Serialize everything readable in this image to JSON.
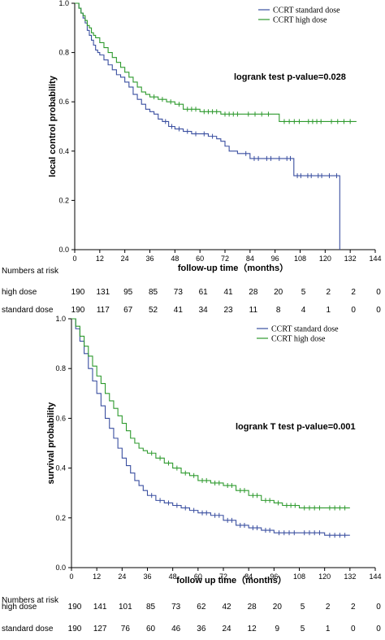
{
  "chart_data": [
    {
      "type": "line",
      "subtype": "kaplan-meier",
      "xlabel": "follow-up time（months）",
      "ylabel": "local control probability",
      "xlim": [
        0,
        144
      ],
      "ylim": [
        0,
        1
      ],
      "x_ticks": [
        "0",
        "12",
        "24",
        "36",
        "48",
        "60",
        "72",
        "84",
        "96",
        "108",
        "120",
        "132",
        "144"
      ],
      "y_ticks": [
        "0.0",
        "0.2",
        "0.4",
        "0.6",
        "0.8",
        "1.0"
      ],
      "annotation": "logrank test p-value=0.028",
      "legend_position": "top-right",
      "legend": [
        "CCRT standard dose",
        "CCRT high dose"
      ],
      "series": [
        {
          "name": "CCRT standard dose",
          "color": "#3a4fa0",
          "x": [
            0,
            2,
            3,
            4,
            5,
            6,
            7,
            8,
            9,
            10,
            11,
            12,
            14,
            16,
            18,
            20,
            22,
            24,
            26,
            28,
            30,
            32,
            34,
            36,
            38,
            40,
            42,
            45,
            48,
            52,
            56,
            60,
            64,
            68,
            70,
            72,
            74,
            76,
            78,
            80,
            84,
            90,
            96,
            100,
            105,
            110,
            115,
            120,
            124,
            127
          ],
          "y": [
            1.0,
            0.98,
            0.96,
            0.94,
            0.92,
            0.89,
            0.87,
            0.85,
            0.83,
            0.81,
            0.8,
            0.79,
            0.77,
            0.75,
            0.73,
            0.71,
            0.7,
            0.68,
            0.66,
            0.63,
            0.61,
            0.59,
            0.57,
            0.56,
            0.55,
            0.53,
            0.52,
            0.5,
            0.49,
            0.48,
            0.47,
            0.47,
            0.46,
            0.45,
            0.44,
            0.42,
            0.4,
            0.4,
            0.39,
            0.39,
            0.37,
            0.37,
            0.37,
            0.37,
            0.3,
            0.3,
            0.3,
            0.3,
            0.3,
            0.0
          ]
        },
        {
          "name": "CCRT high dose",
          "color": "#2e9a2e",
          "x": [
            0,
            2,
            3,
            4,
            5,
            6,
            7,
            8,
            9,
            10,
            12,
            14,
            16,
            18,
            20,
            22,
            24,
            26,
            28,
            30,
            32,
            34,
            36,
            40,
            44,
            48,
            52,
            60,
            70,
            80,
            96,
            98,
            110,
            120,
            135
          ],
          "y": [
            1.0,
            0.98,
            0.96,
            0.95,
            0.93,
            0.91,
            0.9,
            0.88,
            0.87,
            0.86,
            0.84,
            0.82,
            0.8,
            0.78,
            0.76,
            0.74,
            0.72,
            0.7,
            0.68,
            0.66,
            0.64,
            0.63,
            0.62,
            0.61,
            0.6,
            0.59,
            0.57,
            0.56,
            0.55,
            0.55,
            0.55,
            0.52,
            0.52,
            0.52,
            0.52
          ]
        }
      ],
      "numbers_at_risk": {
        "label": "Numbers at risk",
        "rows": [
          {
            "label": "high dose",
            "values": [
              "190",
              "131",
              "95",
              "85",
              "73",
              "61",
              "41",
              "28",
              "20",
              "5",
              "2",
              "2",
              "0"
            ]
          },
          {
            "label": "standard dose",
            "values": [
              "190",
              "117",
              "67",
              "52",
              "41",
              "34",
              "23",
              "11",
              "8",
              "4",
              "1",
              "0",
              "0"
            ]
          }
        ]
      }
    },
    {
      "type": "line",
      "subtype": "kaplan-meier",
      "xlabel": "follow up time（months）",
      "ylabel": "survival probability",
      "xlim": [
        0,
        144
      ],
      "ylim": [
        0,
        1
      ],
      "x_ticks": [
        "0",
        "12",
        "24",
        "36",
        "48",
        "60",
        "72",
        "84",
        "96",
        "108",
        "120",
        "132",
        "144"
      ],
      "y_ticks": [
        "0.0",
        "0.2",
        "0.4",
        "0.6",
        "0.8",
        "1.0"
      ],
      "annotation": "logrank T test p-value=0.001",
      "legend_position": "top-right",
      "legend": [
        "CCRT standard dose",
        "CCRT high dose"
      ],
      "series": [
        {
          "name": "CCRT standard dose",
          "color": "#3a4fa0",
          "x": [
            0,
            2,
            4,
            6,
            8,
            10,
            12,
            14,
            16,
            18,
            20,
            22,
            24,
            26,
            28,
            30,
            32,
            34,
            36,
            40,
            44,
            48,
            52,
            56,
            60,
            66,
            72,
            78,
            84,
            90,
            96,
            108,
            120,
            132
          ],
          "y": [
            1.0,
            0.96,
            0.91,
            0.86,
            0.8,
            0.75,
            0.7,
            0.65,
            0.6,
            0.56,
            0.52,
            0.48,
            0.44,
            0.41,
            0.38,
            0.35,
            0.33,
            0.31,
            0.29,
            0.27,
            0.26,
            0.25,
            0.24,
            0.23,
            0.22,
            0.21,
            0.19,
            0.17,
            0.16,
            0.15,
            0.14,
            0.14,
            0.13,
            0.13
          ]
        },
        {
          "name": "CCRT high dose",
          "color": "#2e9a2e",
          "x": [
            0,
            2,
            4,
            6,
            8,
            10,
            12,
            14,
            16,
            18,
            20,
            22,
            24,
            26,
            28,
            30,
            32,
            34,
            36,
            40,
            44,
            48,
            52,
            56,
            60,
            66,
            72,
            78,
            84,
            90,
            96,
            100,
            108,
            120,
            132
          ],
          "y": [
            1.0,
            0.97,
            0.93,
            0.89,
            0.85,
            0.81,
            0.77,
            0.74,
            0.7,
            0.67,
            0.64,
            0.61,
            0.58,
            0.55,
            0.52,
            0.5,
            0.48,
            0.47,
            0.46,
            0.44,
            0.42,
            0.4,
            0.38,
            0.37,
            0.35,
            0.34,
            0.33,
            0.31,
            0.29,
            0.27,
            0.26,
            0.25,
            0.24,
            0.24,
            0.24
          ]
        }
      ],
      "numbers_at_risk": {
        "label": "Numbers at risk",
        "rows": [
          {
            "label": "high dose",
            "values": [
              "190",
              "141",
              "101",
              "85",
              "73",
              "62",
              "42",
              "28",
              "20",
              "5",
              "2",
              "2",
              "0"
            ]
          },
          {
            "label": "standard dose",
            "values": [
              "190",
              "127",
              "76",
              "60",
              "46",
              "36",
              "24",
              "12",
              "9",
              "5",
              "1",
              "0",
              "0"
            ]
          }
        ]
      }
    }
  ]
}
